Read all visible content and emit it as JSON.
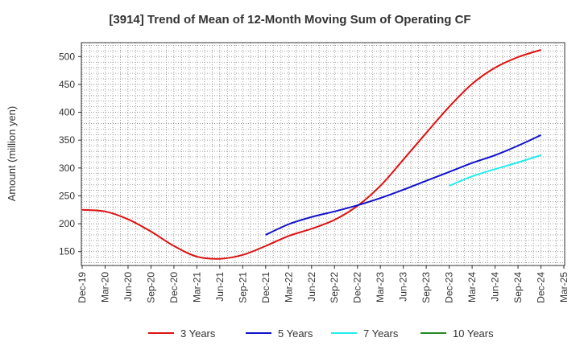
{
  "chart_data": {
    "type": "line",
    "title": "[3914]  Trend of Mean of 12-Month Moving Sum of Operating CF",
    "xlabel": "",
    "ylabel": "Amount (million yen)",
    "ylim": [
      125,
      525
    ],
    "yticks": [
      150,
      200,
      250,
      300,
      350,
      400,
      450,
      500
    ],
    "grid": true,
    "legend_position": "bottom",
    "categories": [
      "Dec-19",
      "Mar-20",
      "Jun-20",
      "Sep-20",
      "Dec-20",
      "Mar-21",
      "Jun-21",
      "Sep-21",
      "Dec-21",
      "Mar-22",
      "Jun-22",
      "Sep-22",
      "Dec-22",
      "Mar-23",
      "Jun-23",
      "Sep-23",
      "Dec-23",
      "Mar-24",
      "Jun-24",
      "Sep-24",
      "Dec-24",
      "Mar-25"
    ],
    "series": [
      {
        "name": "3 Years",
        "color": "#dd1111",
        "values": [
          225,
          222,
          208,
          186,
          160,
          141,
          137,
          144,
          160,
          178,
          191,
          207,
          232,
          268,
          315,
          363,
          410,
          451,
          480,
          499,
          512,
          null
        ]
      },
      {
        "name": "5 Years",
        "color": "#1111cc",
        "values": [
          null,
          null,
          null,
          null,
          null,
          null,
          null,
          null,
          180,
          199,
          212,
          222,
          233,
          246,
          261,
          277,
          293,
          309,
          323,
          340,
          359,
          null
        ]
      },
      {
        "name": "7 Years",
        "color": "#22eeee",
        "values": [
          null,
          null,
          null,
          null,
          null,
          null,
          null,
          null,
          null,
          null,
          null,
          null,
          null,
          null,
          null,
          null,
          268,
          285,
          298,
          310,
          323,
          null
        ]
      },
      {
        "name": "10 Years",
        "color": "#228822",
        "values": [
          null,
          null,
          null,
          null,
          null,
          null,
          null,
          null,
          null,
          null,
          null,
          null,
          null,
          null,
          null,
          null,
          null,
          null,
          null,
          null,
          null,
          null
        ]
      }
    ]
  }
}
